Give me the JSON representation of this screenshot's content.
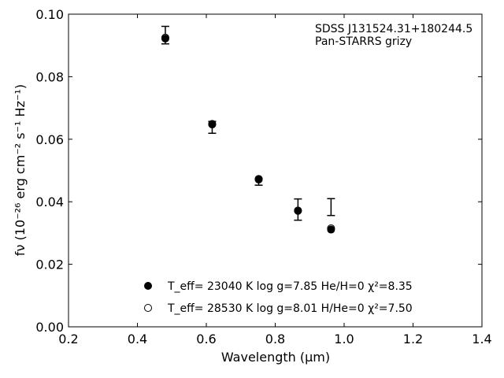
{
  "chart_data": {
    "type": "scatter",
    "title": "",
    "xlabel": "Wavelength (μm)",
    "ylabel": "fν (10⁻²⁶ erg cm⁻² s⁻¹ Hz⁻¹)",
    "xlim": [
      0.2,
      1.4
    ],
    "ylim": [
      0.0,
      0.1
    ],
    "xticks": [
      0.2,
      0.4,
      0.6,
      0.8,
      1.0,
      1.2,
      1.4
    ],
    "yticks": [
      0.0,
      0.02,
      0.04,
      0.06,
      0.08,
      0.1
    ],
    "xtick_labels": [
      "0.2",
      "0.4",
      "0.6",
      "0.8",
      "1.0",
      "1.2",
      "1.4"
    ],
    "ytick_labels": [
      "0.00",
      "0.02",
      "0.04",
      "0.06",
      "0.08",
      "0.10"
    ],
    "grid": false,
    "legend_position": "lower-center",
    "annotations": [
      "SDSS J131524.31+180244.5",
      "Pan-STARRS grizy"
    ],
    "observed": {
      "x": [
        0.481,
        0.617,
        0.752,
        0.866,
        0.962
      ],
      "y": [
        0.0933,
        0.0638,
        0.0464,
        0.0375,
        0.0383
      ],
      "yerr": [
        0.0028,
        0.0019,
        0.0011,
        0.0034,
        0.0027
      ]
    },
    "series": [
      {
        "legend_label": "T_eff= 23040 K  log g=7.85  He/H=0  χ²=8.35",
        "marker": "filled-circle",
        "x": [
          0.481,
          0.617,
          0.752,
          0.866,
          0.962
        ],
        "y": [
          0.0922,
          0.0647,
          0.0471,
          0.0371,
          0.0311
        ]
      },
      {
        "legend_label": "T_eff= 28530 K  log g=8.01  H/He=0  χ²=7.50",
        "marker": "open-circle",
        "x": [
          0.481,
          0.617,
          0.752,
          0.866,
          0.962
        ],
        "y": [
          0.0925,
          0.0649,
          0.0473,
          0.0372,
          0.0315
        ]
      }
    ]
  }
}
